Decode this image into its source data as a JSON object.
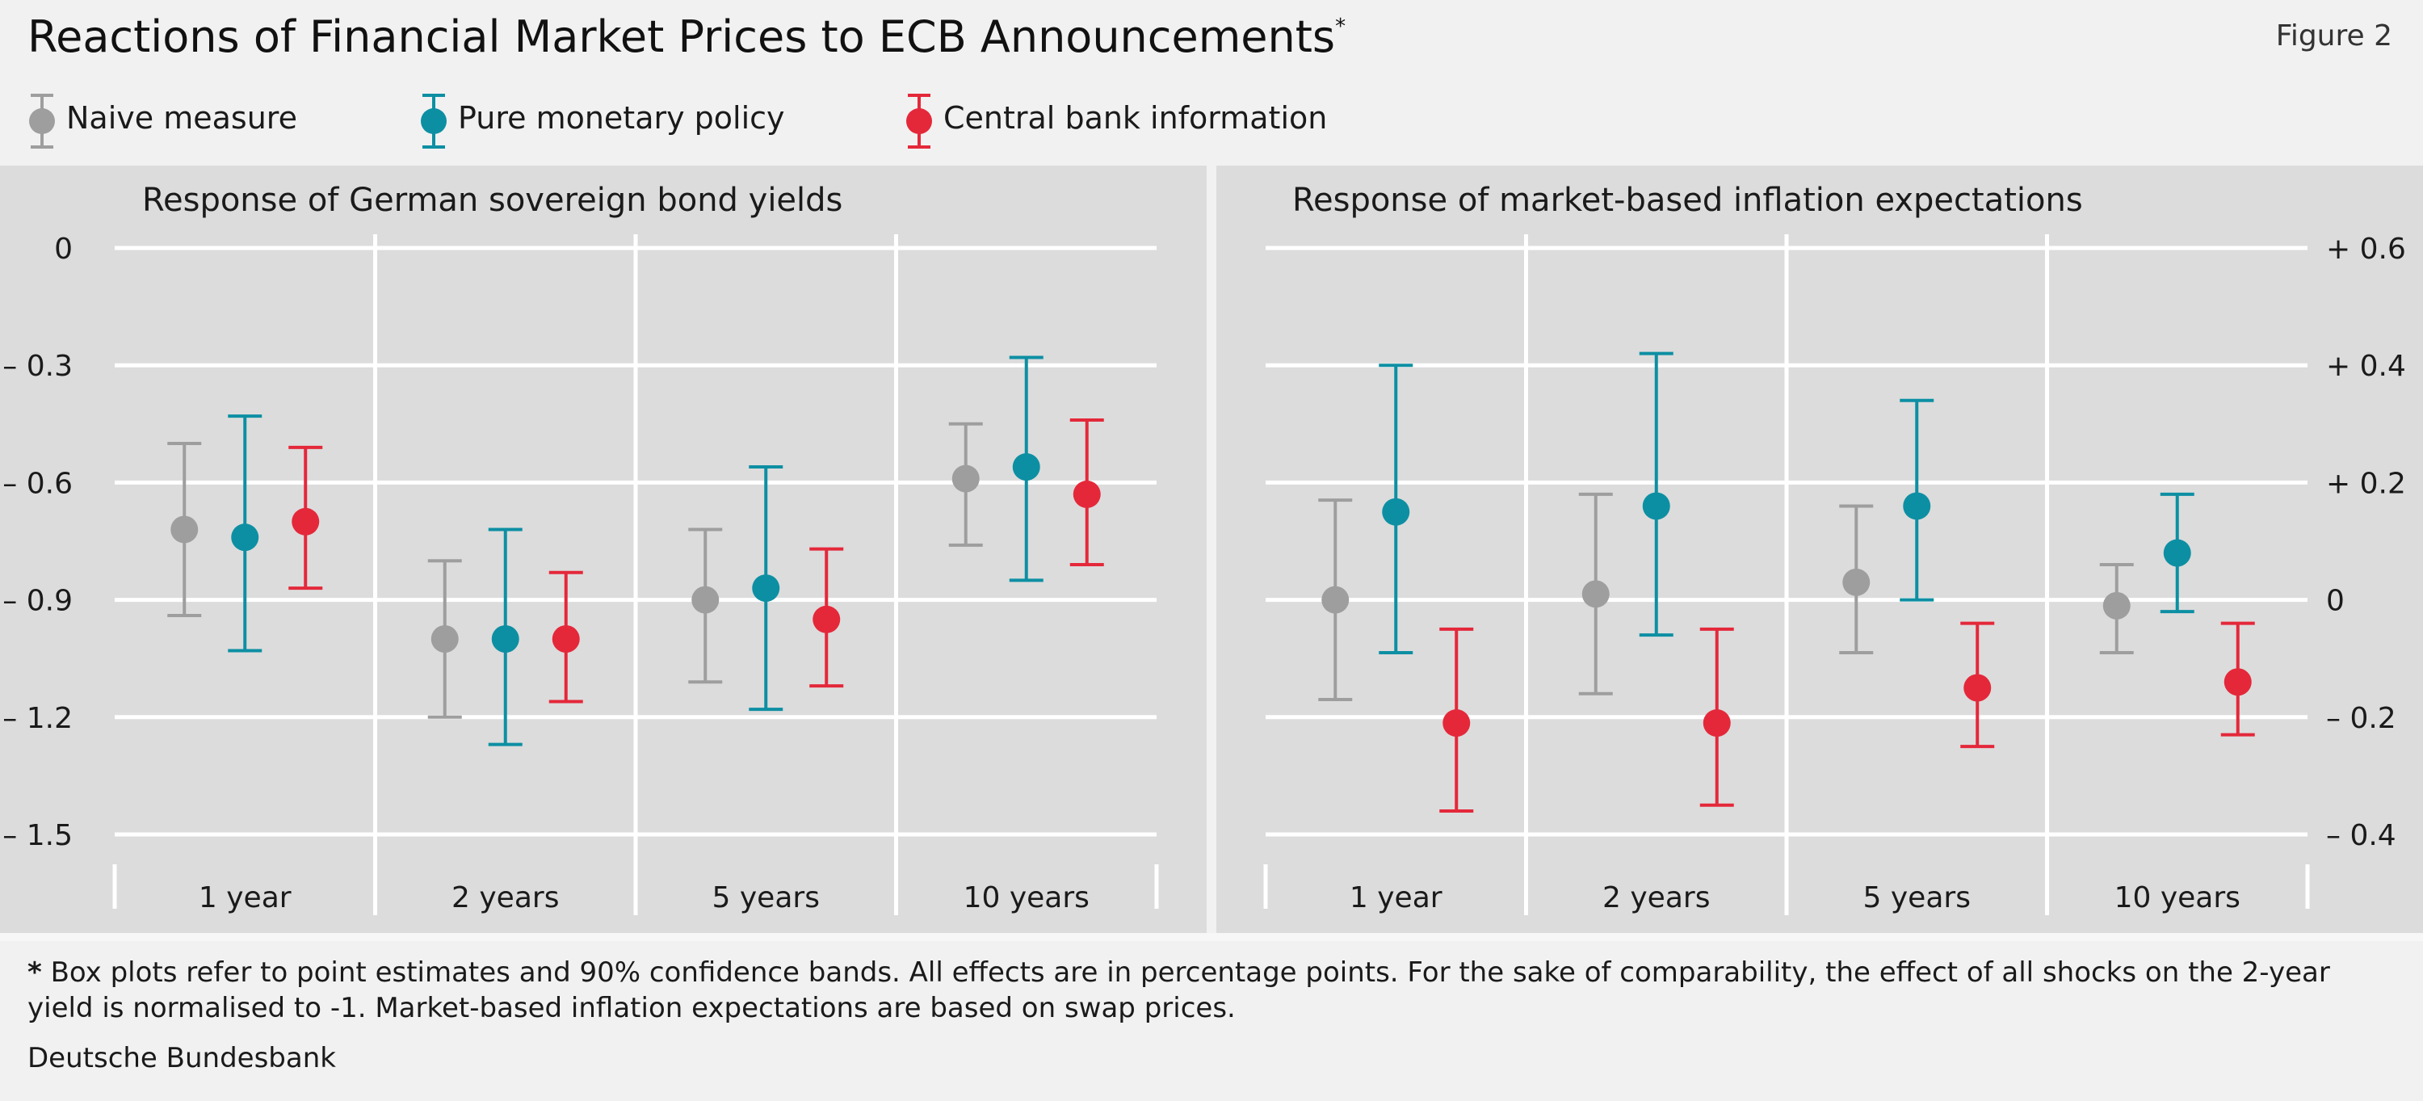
{
  "header": {
    "title": "Reactions of Financial Market Prices to ECB Announcements",
    "title_mark": "*",
    "figure_label": "Figure 2"
  },
  "legend": [
    {
      "label": "Naive measure",
      "color": "#9e9e9e"
    },
    {
      "label": "Pure monetary policy",
      "color": "#0d8fa3"
    },
    {
      "label": "Central bank information",
      "color": "#e4283a"
    }
  ],
  "footnote": {
    "mark": "*",
    "text": "Box plots refer to point estimates and  90% confidence bands. All effects are in percentage points. For the sake of comparability, the effect of all shocks on the 2-year yield is normalised to -1. Market-based inflation expectations are based on swap prices."
  },
  "source": "Deutsche Bundesbank",
  "chart_data": [
    {
      "type": "errorbar",
      "title": "Response of German sovereign bond yields",
      "categories": [
        "1 year",
        "2 years",
        "5 years",
        "10 years"
      ],
      "ylim": [
        -1.5,
        0
      ],
      "yticks": [
        0,
        -0.3,
        -0.6,
        -0.9,
        -1.2,
        -1.5
      ],
      "ytick_labels": [
        "0",
        "– 0.3",
        "– 0.6",
        "– 0.9",
        "– 1.2",
        "– 1.5"
      ],
      "y_axis_side": "left",
      "grid": true,
      "series": [
        {
          "name": "Naive measure",
          "color": "#9e9e9e",
          "values": [
            -0.72,
            -1.0,
            -0.9,
            -0.59
          ],
          "lower": [
            -0.94,
            -1.2,
            -1.11,
            -0.76
          ],
          "upper": [
            -0.5,
            -0.8,
            -0.72,
            -0.45
          ]
        },
        {
          "name": "Pure monetary policy",
          "color": "#0d8fa3",
          "values": [
            -0.74,
            -1.0,
            -0.87,
            -0.56
          ],
          "lower": [
            -1.03,
            -1.27,
            -1.18,
            -0.85
          ],
          "upper": [
            -0.43,
            -0.72,
            -0.56,
            -0.28
          ]
        },
        {
          "name": "Central bank information",
          "color": "#e4283a",
          "values": [
            -0.7,
            -1.0,
            -0.95,
            -0.63
          ],
          "lower": [
            -0.87,
            -1.16,
            -1.12,
            -0.81
          ],
          "upper": [
            -0.51,
            -0.83,
            -0.77,
            -0.44
          ]
        }
      ]
    },
    {
      "type": "errorbar",
      "title": "Response of market-based inflation expectations",
      "categories": [
        "1 year",
        "2 years",
        "5 years",
        "10 years"
      ],
      "ylim": [
        -0.4,
        0.6
      ],
      "yticks": [
        0.6,
        0.4,
        0.2,
        0,
        -0.2,
        -0.4
      ],
      "ytick_labels": [
        "+ 0.6",
        "+ 0.4",
        "+ 0.2",
        "0",
        "– 0.2",
        "– 0.4"
      ],
      "y_axis_side": "right",
      "grid": true,
      "series": [
        {
          "name": "Naive measure",
          "color": "#9e9e9e",
          "values": [
            0.0,
            0.01,
            0.03,
            -0.01
          ],
          "lower": [
            -0.17,
            -0.16,
            -0.09,
            -0.09
          ],
          "upper": [
            0.17,
            0.18,
            0.16,
            0.06
          ]
        },
        {
          "name": "Pure monetary policy",
          "color": "#0d8fa3",
          "values": [
            0.15,
            0.16,
            0.16,
            0.08
          ],
          "lower": [
            -0.09,
            -0.06,
            0.0,
            -0.02
          ],
          "upper": [
            0.4,
            0.42,
            0.34,
            0.18
          ]
        },
        {
          "name": "Central bank information",
          "color": "#e4283a",
          "values": [
            -0.21,
            -0.21,
            -0.15,
            -0.14
          ],
          "lower": [
            -0.36,
            -0.35,
            -0.25,
            -0.23
          ],
          "upper": [
            -0.05,
            -0.05,
            -0.04,
            -0.04
          ]
        }
      ]
    }
  ]
}
